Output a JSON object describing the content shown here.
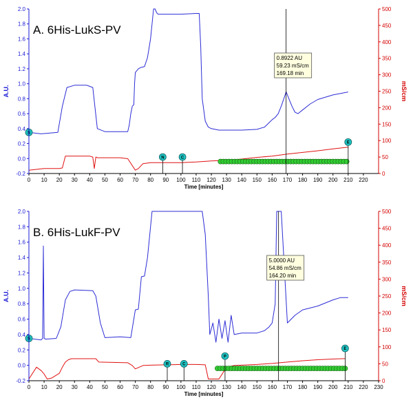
{
  "chart_data": [
    {
      "type": "line",
      "title": "A. 6His-LukS-PV",
      "xlabel": "Time [minutes]",
      "ylabel_left": "A.U.",
      "ylabel_right": "mS/cm",
      "xlim": [
        0,
        230
      ],
      "xticks": [
        0,
        10,
        20,
        30,
        40,
        50,
        60,
        70,
        80,
        90,
        100,
        110,
        120,
        130,
        140,
        150,
        160,
        170,
        180,
        190,
        200,
        210,
        220
      ],
      "ylim_left": [
        -0.2,
        2.0
      ],
      "yticks_left": [
        -0.2,
        0.0,
        0.2,
        0.4,
        0.6,
        0.8,
        1.0,
        1.2,
        1.4,
        1.6,
        1.8,
        2.0
      ],
      "ylim_right": [
        0,
        500
      ],
      "yticks_right": [
        0,
        50,
        100,
        150,
        200,
        250,
        300,
        350,
        400,
        450,
        500
      ],
      "grid": false,
      "colors": {
        "absorbance": "#2b2bd6",
        "conductivity": "#e01010",
        "marker": "#20c4c4",
        "fraction": "#33cc33"
      },
      "series": [
        {
          "axis": "left",
          "x": [
            0,
            8,
            19,
            22,
            25,
            30,
            38,
            42,
            45,
            50,
            60,
            65,
            66,
            67,
            68,
            69,
            69.5,
            70,
            72,
            74,
            76,
            78,
            80,
            82,
            83,
            84,
            85,
            90,
            100,
            110,
            112,
            113,
            114,
            116,
            118,
            120,
            125,
            130,
            140,
            150,
            155,
            158,
            160,
            162,
            164,
            166,
            168,
            169.2,
            171,
            173,
            175,
            177,
            180,
            185,
            190,
            200,
            210
          ],
          "y": [
            0.35,
            0.33,
            0.35,
            0.7,
            0.95,
            0.98,
            0.98,
            0.95,
            0.4,
            0.36,
            0.36,
            0.36,
            0.45,
            0.6,
            0.7,
            0.72,
            1.0,
            1.15,
            1.2,
            1.22,
            1.23,
            1.35,
            1.6,
            2.0,
            2.0,
            1.95,
            1.93,
            1.93,
            1.93,
            1.94,
            1.94,
            1.5,
            0.8,
            0.5,
            0.42,
            0.4,
            0.38,
            0.38,
            0.38,
            0.39,
            0.42,
            0.48,
            0.52,
            0.55,
            0.6,
            0.7,
            0.82,
            0.8922,
            0.8,
            0.7,
            0.62,
            0.6,
            0.65,
            0.73,
            0.79,
            0.85,
            0.89
          ]
        },
        {
          "axis": "right",
          "x": [
            0,
            10,
            20,
            22,
            23,
            24,
            40,
            42,
            43,
            44,
            45,
            60,
            65,
            70,
            72,
            75,
            80,
            90,
            100,
            110,
            120,
            130,
            140,
            150,
            160,
            170,
            180,
            190,
            200,
            210
          ],
          "y": [
            10,
            15,
            15,
            17,
            35,
            53,
            53,
            50,
            15,
            50,
            48,
            48,
            45,
            10,
            15,
            30,
            33,
            33,
            33,
            35,
            38,
            40,
            44,
            49,
            53,
            59.2,
            64,
            69,
            75,
            80
          ]
        }
      ],
      "markers": [
        {
          "label": "S",
          "x": 0
        },
        {
          "label": "N",
          "x": 88
        },
        {
          "label": "C",
          "x": 101
        },
        {
          "label": "E",
          "x": 210
        }
      ],
      "fractions": {
        "x_start": 126,
        "x_end": 209,
        "count": 46
      },
      "annotation": {
        "x": 169.18,
        "lines": [
          "0.8922 AU",
          "59.23 mS/cm",
          "169.18 min"
        ]
      }
    },
    {
      "type": "line",
      "title": "B. 6His-LukF-PV",
      "xlabel": "Time [minutes]",
      "ylabel_left": "A.U.",
      "ylabel_right": "mS/cm",
      "xlim": [
        0,
        230
      ],
      "xticks": [
        0,
        10,
        20,
        30,
        40,
        50,
        60,
        70,
        80,
        90,
        100,
        110,
        120,
        130,
        140,
        150,
        160,
        170,
        180,
        190,
        200,
        210,
        220,
        230
      ],
      "ylim_left": [
        -0.2,
        2.0
      ],
      "yticks_left": [
        -0.2,
        0.0,
        0.2,
        0.4,
        0.6,
        0.8,
        1.0,
        1.2,
        1.4,
        1.6,
        1.8,
        2.0
      ],
      "ylim_right": [
        0,
        500
      ],
      "yticks_right": [
        0,
        50,
        100,
        150,
        200,
        250,
        300,
        350,
        400,
        450,
        500
      ],
      "grid": false,
      "colors": {
        "absorbance": "#2b2bd6",
        "conductivity": "#e01010",
        "marker": "#20c4c4",
        "fraction": "#33cc33"
      },
      "series": [
        {
          "axis": "left",
          "x": [
            0,
            8,
            9,
            9.5,
            10,
            11,
            18,
            21,
            24,
            27,
            30,
            42,
            44,
            47,
            50,
            60,
            67,
            69,
            70,
            72,
            74,
            76,
            78,
            80,
            81,
            82,
            90,
            100,
            110,
            114,
            116,
            118,
            119,
            121,
            123,
            125,
            127,
            129,
            131,
            133,
            135,
            140,
            150,
            155,
            158,
            160,
            162,
            163,
            166,
            170,
            175,
            180,
            190,
            200,
            205,
            210
          ],
          "y": [
            0.35,
            0.33,
            0.35,
            1.55,
            0.35,
            0.34,
            0.35,
            0.5,
            0.85,
            0.96,
            0.98,
            0.97,
            0.9,
            0.55,
            0.36,
            0.37,
            0.36,
            0.6,
            0.72,
            0.73,
            1.15,
            1.16,
            1.4,
            1.8,
            2.0,
            2.0,
            2.0,
            2.0,
            2.0,
            2.0,
            1.7,
            0.9,
            0.4,
            0.55,
            0.3,
            0.6,
            0.35,
            0.58,
            0.3,
            0.65,
            0.4,
            0.42,
            0.42,
            0.45,
            0.5,
            0.55,
            0.8,
            2.0,
            2.0,
            0.55,
            0.65,
            0.72,
            0.77,
            0.85,
            0.88,
            0.88
          ]
        },
        {
          "axis": "right",
          "x": [
            0,
            5,
            8,
            10,
            12,
            15,
            20,
            22,
            24,
            26,
            28,
            44,
            46,
            65,
            68,
            70,
            75,
            80,
            90,
            100,
            110,
            116,
            118,
            125,
            130,
            135,
            140,
            150,
            160,
            170,
            180,
            190,
            200,
            206,
            208
          ],
          "y": [
            5,
            40,
            30,
            20,
            5,
            8,
            22,
            40,
            55,
            62,
            65,
            65,
            55,
            53,
            45,
            35,
            45,
            46,
            47,
            48,
            48,
            47,
            5,
            5,
            40,
            45,
            46,
            48,
            51,
            55,
            59,
            62,
            64,
            65,
            65
          ]
        }
      ],
      "markers": [
        {
          "label": "S",
          "x": 0
        },
        {
          "label": "R",
          "x": 91
        },
        {
          "label": "C",
          "x": 102
        },
        {
          "label": "P",
          "x": 129
        },
        {
          "label": "E",
          "x": 208
        }
      ],
      "fractions": {
        "x_start": 124,
        "x_end": 208,
        "count": 46
      },
      "annotation": {
        "x": 164.2,
        "lines": [
          "5.0000 AU",
          "54.86 mS/cm",
          "164.20 min"
        ]
      }
    }
  ]
}
